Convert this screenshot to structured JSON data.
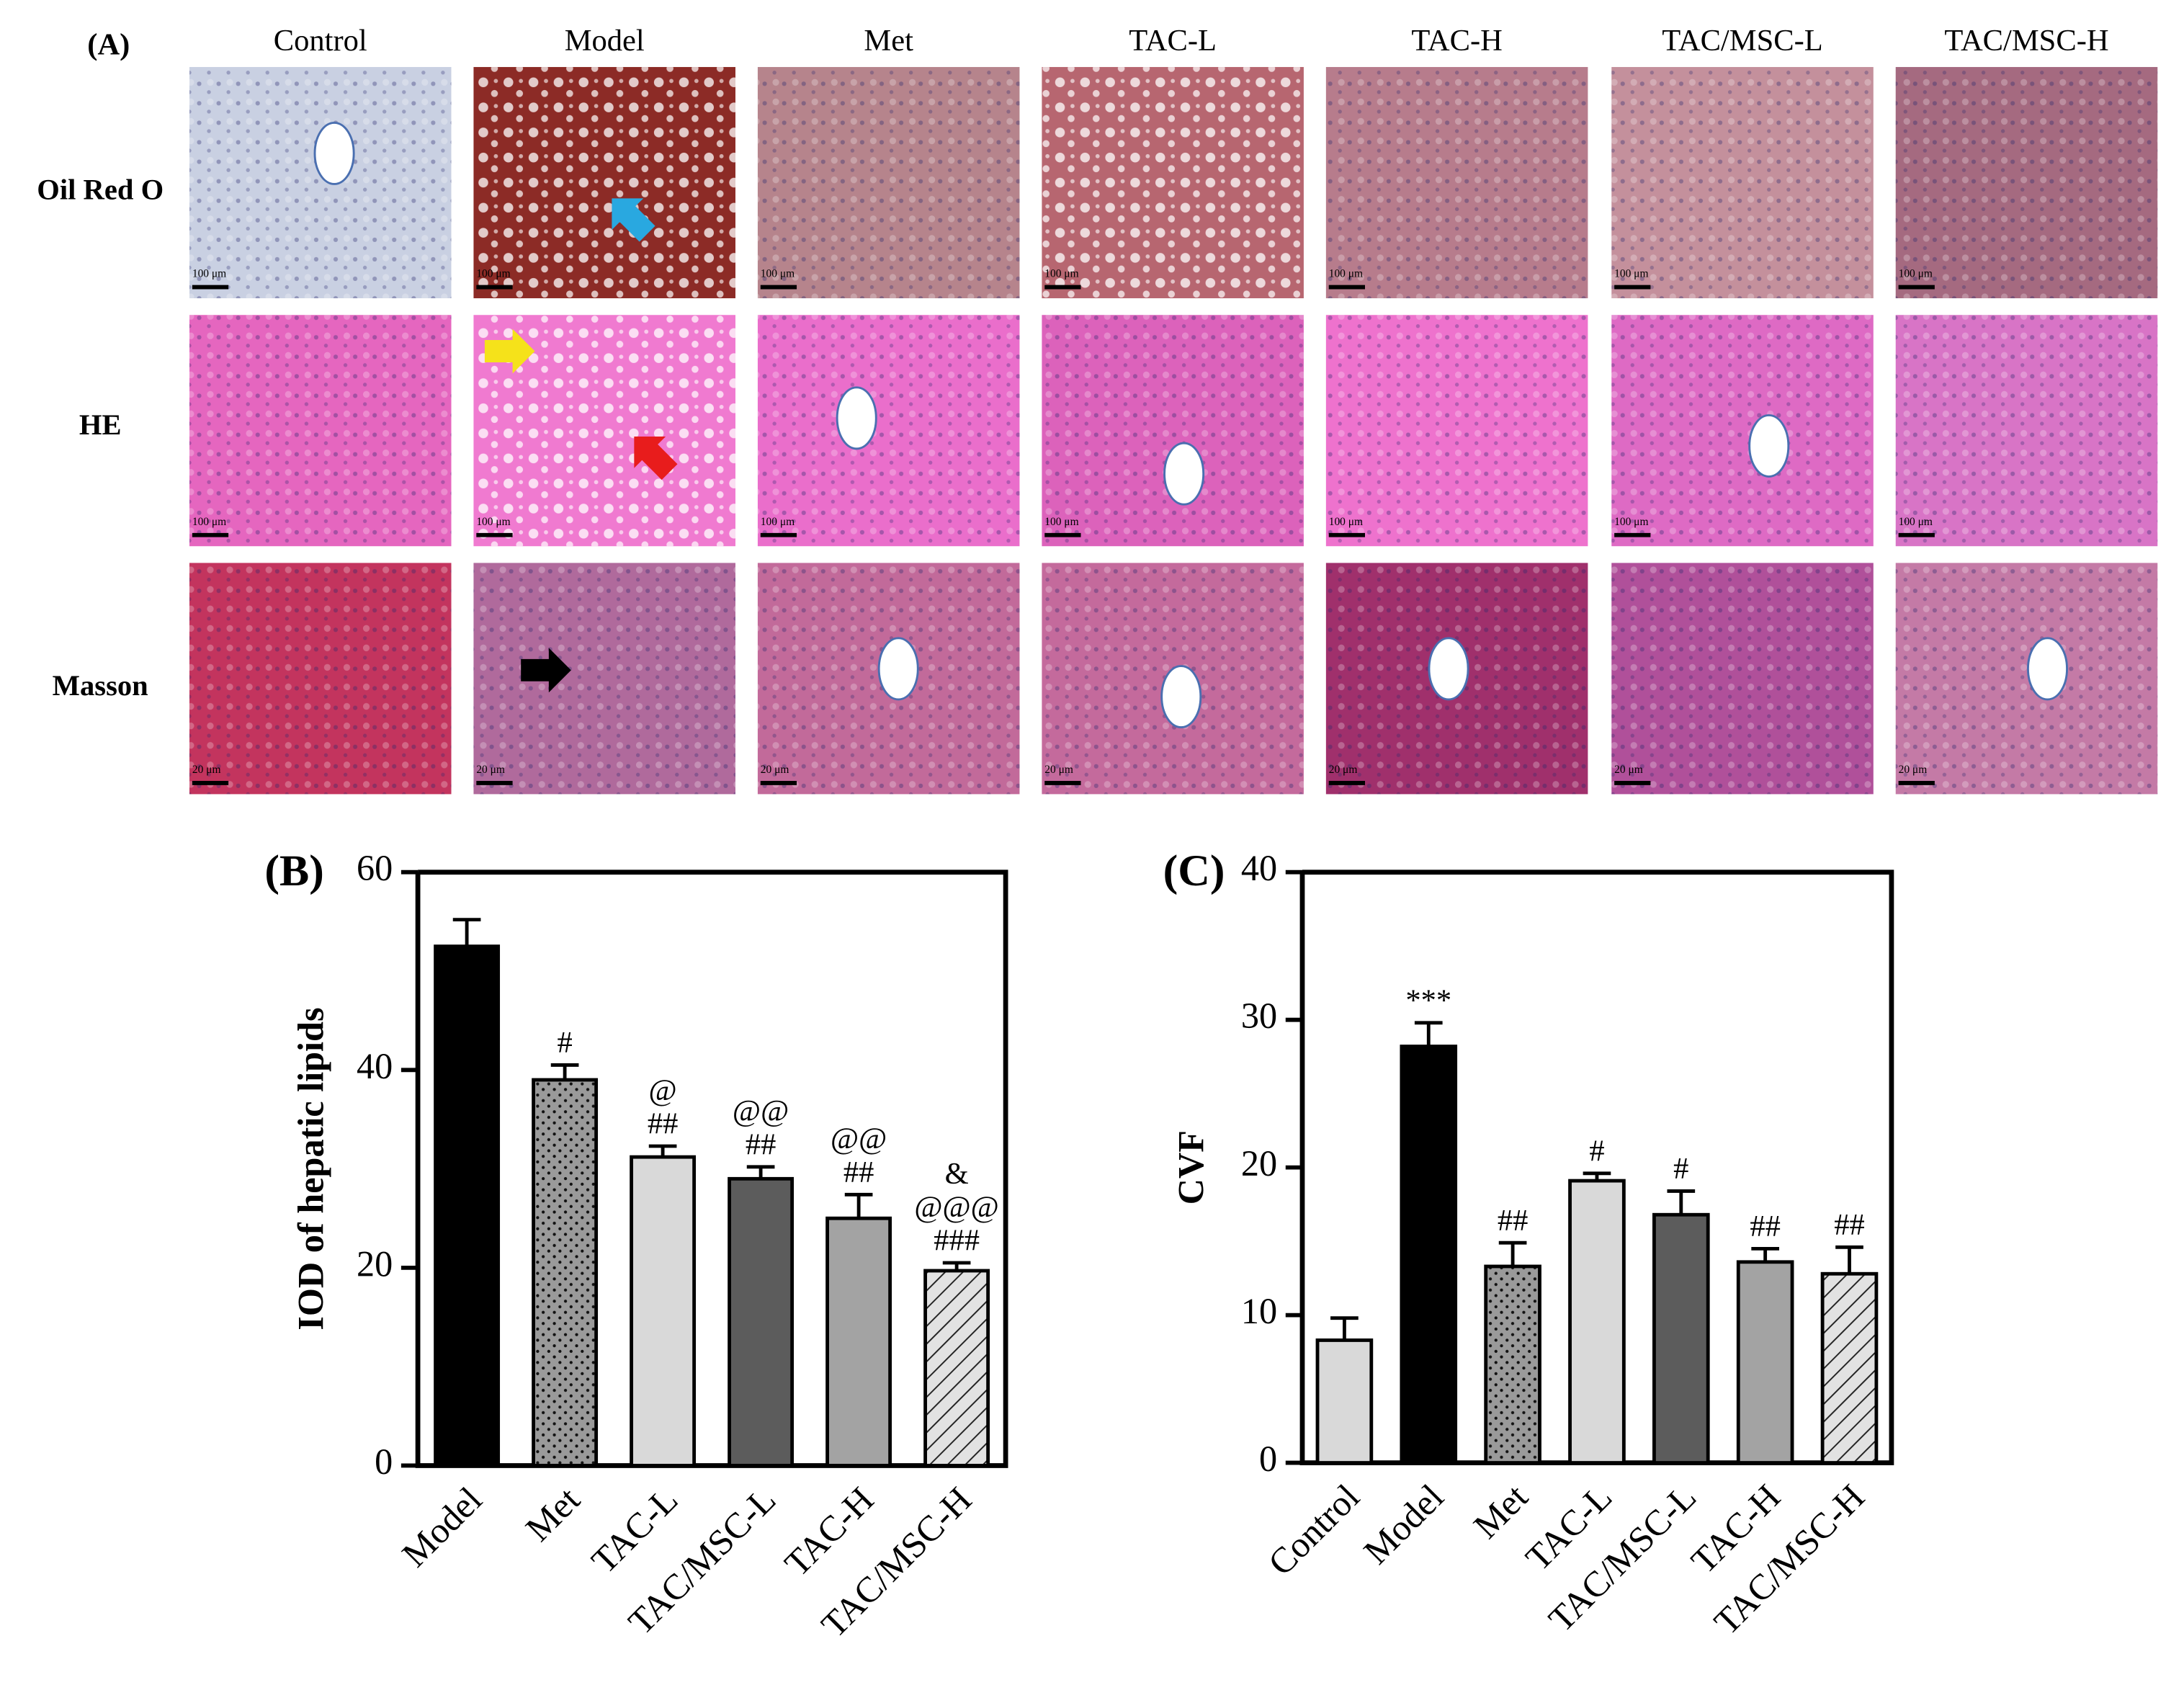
{
  "panel_a": {
    "label": "(A)",
    "columns": [
      "Control",
      "Model",
      "Met",
      "TAC-L",
      "TAC-H",
      "TAC/MSC-L",
      "TAC/MSC-H"
    ],
    "rows": [
      "Oil Red O",
      "HE",
      "Masson"
    ],
    "scale_bars": [
      [
        "100 μm",
        "100 μm",
        "100 μm",
        "100 μm",
        "100 μm",
        "100 μm",
        "100 μm"
      ],
      [
        "100 μm",
        "100 μm",
        "100 μm",
        "100 μm",
        "100 μm",
        "100 μm",
        "100 μm"
      ],
      [
        "20 μm",
        "20 μm",
        "20 μm",
        "20 μm",
        "20 μm",
        "20 μm",
        "20 μm"
      ]
    ]
  },
  "chart_data": [
    {
      "type": "bar",
      "panel_label": "(B)",
      "ylabel": "IOD of hepatic lipids",
      "categories": [
        "Model",
        "Met",
        "TAC-L",
        "TAC/MSC-L",
        "TAC-H",
        "TAC/MSC-H"
      ],
      "values": [
        52.5,
        39,
        31.2,
        29,
        25,
        19.7
      ],
      "errors": [
        2.7,
        1.5,
        1.1,
        1.2,
        2.4,
        0.8
      ],
      "colors": [
        "#000000",
        "#9a9a9a",
        "#d9d9d9",
        "#5c5c5c",
        "#a3a3a3",
        "#dedede"
      ],
      "patterns": [
        null,
        "dots",
        null,
        null,
        null,
        "hatch"
      ],
      "annotations": [
        [],
        [
          "#"
        ],
        [
          "@",
          "##"
        ],
        [
          "@@",
          "##"
        ],
        [
          "@@",
          "##"
        ],
        [
          "&",
          "@@@",
          "###"
        ]
      ],
      "ylim": [
        0,
        60
      ],
      "yticks": [
        0,
        20,
        40,
        60
      ]
    },
    {
      "type": "bar",
      "panel_label": "(C)",
      "ylabel": "CVF",
      "categories": [
        "Control",
        "Model",
        "Met",
        "TAC-L",
        "TAC/MSC-L",
        "TAC-H",
        "TAC/MSC-H"
      ],
      "values": [
        8.3,
        28.2,
        13.3,
        19.1,
        16.8,
        13.6,
        12.8
      ],
      "errors": [
        1.5,
        1.6,
        1.6,
        0.5,
        1.6,
        0.9,
        1.8
      ],
      "colors": [
        "#d9d9d9",
        "#000000",
        "#9a9a9a",
        "#d9d9d9",
        "#5c5c5c",
        "#a3a3a3",
        "#dedede"
      ],
      "patterns": [
        null,
        null,
        "dots",
        null,
        null,
        null,
        "hatch"
      ],
      "annotations": [
        [],
        [
          "***"
        ],
        [
          "##"
        ],
        [
          "#"
        ],
        [
          "#"
        ],
        [
          "##"
        ],
        [
          "##"
        ]
      ],
      "ylim": [
        0,
        40
      ],
      "yticks": [
        0,
        10,
        20,
        30,
        40
      ]
    }
  ]
}
